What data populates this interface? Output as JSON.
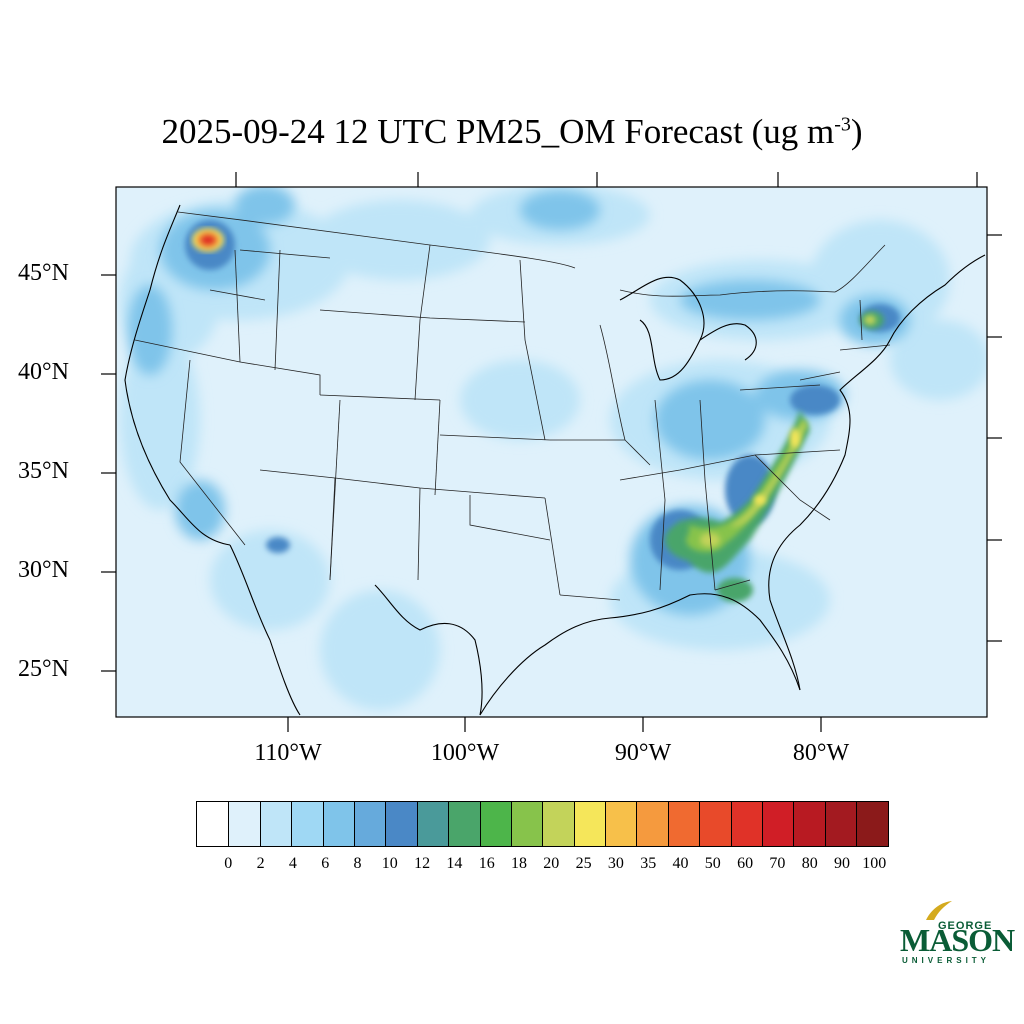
{
  "title": {
    "main": "2025-09-24 12 UTC PM25_OM Forecast (ug m",
    "exponent": "-3",
    "close": ")"
  },
  "axes": {
    "lat_labels": [
      "45°N",
      "40°N",
      "35°N",
      "30°N",
      "25°N"
    ],
    "lon_labels": [
      "110°W",
      "100°W",
      "90°W",
      "80°W"
    ]
  },
  "colorbar": {
    "colors": [
      "#ffffff",
      "#dff1fb",
      "#bfe5f8",
      "#9fd8f4",
      "#7fc4ea",
      "#66aadc",
      "#4a88c6",
      "#4a9a9a",
      "#4aa56a",
      "#4db54a",
      "#87c34b",
      "#c3d35a",
      "#f5e65a",
      "#f7c04a",
      "#f59a3e",
      "#f06a30",
      "#e84a2a",
      "#e03228",
      "#d01e26",
      "#b81a22",
      "#a31a20",
      "#8b1a1a"
    ],
    "labels": [
      "0",
      "2",
      "4",
      "6",
      "8",
      "10",
      "12",
      "14",
      "16",
      "18",
      "20",
      "25",
      "30",
      "35",
      "40",
      "50",
      "60",
      "70",
      "80",
      "90",
      "100"
    ]
  },
  "logo": {
    "top": "GEORGE",
    "name": "MASON",
    "bottom": "UNIVERSITY"
  }
}
